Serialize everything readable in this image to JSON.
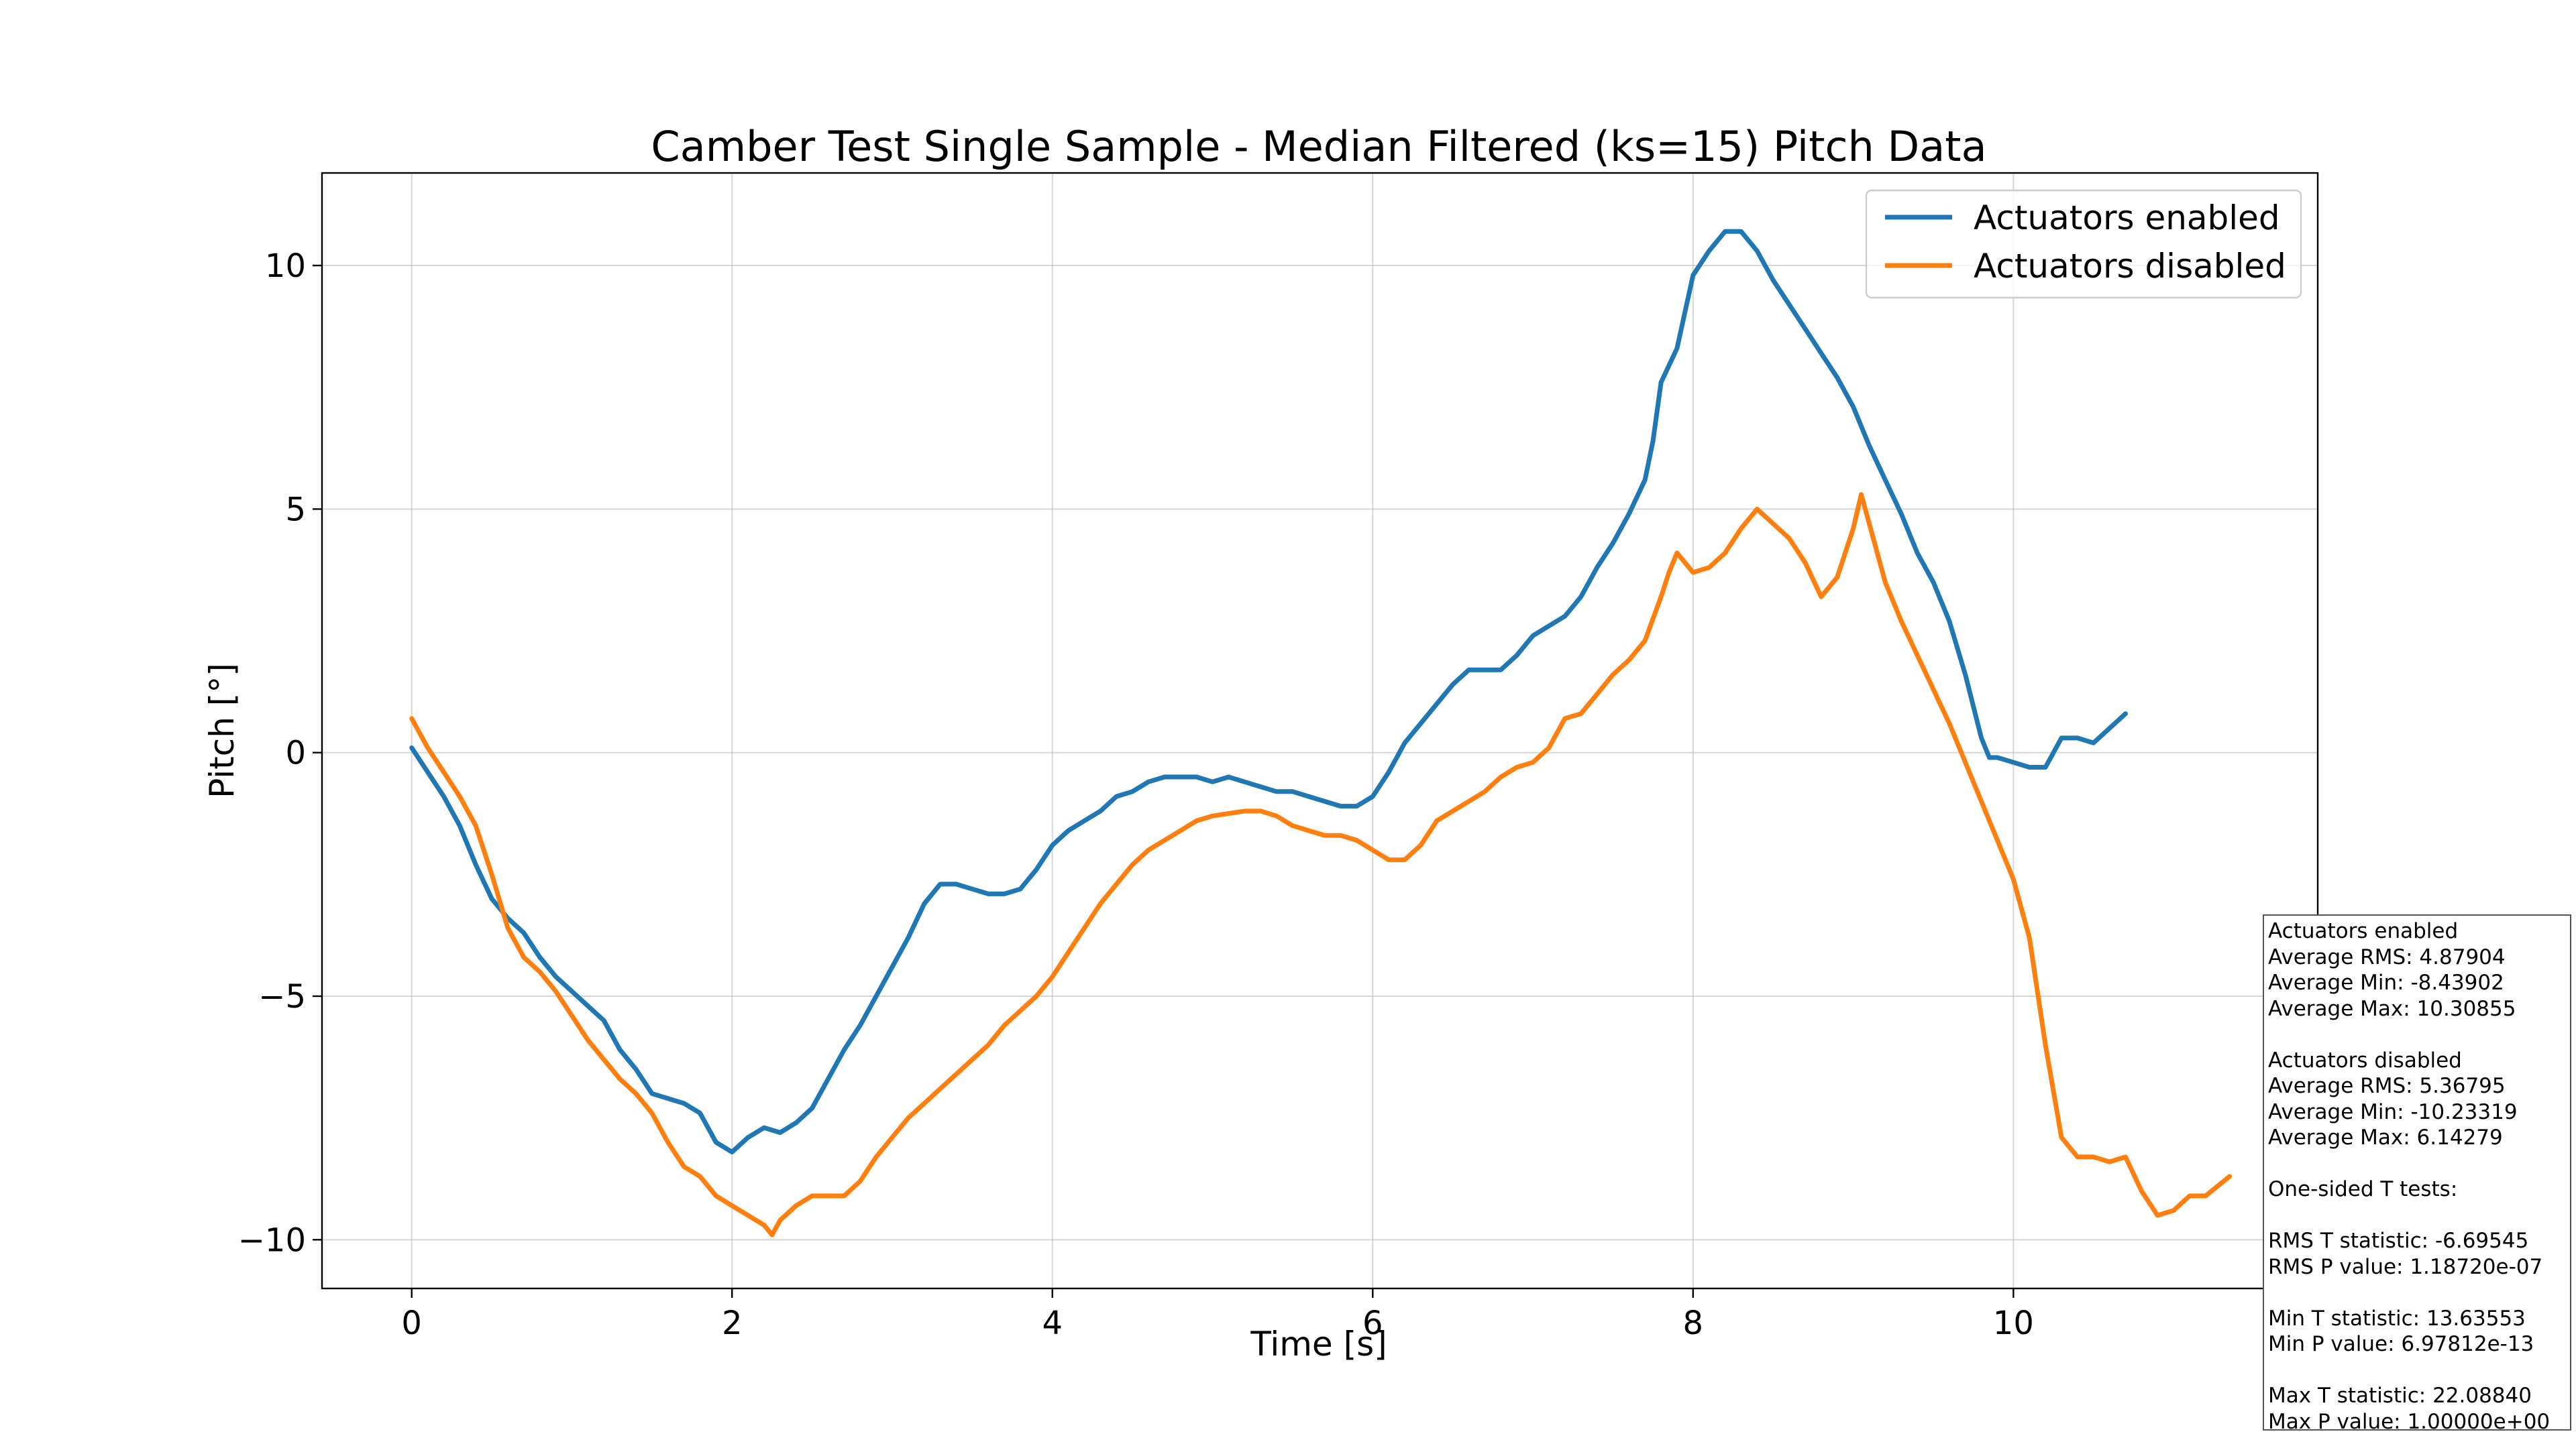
{
  "chart_data": {
    "type": "line",
    "title": "Camber Test Single Sample - Median Filtered (ks=15) Pitch Data",
    "xlabel": "Time [s]",
    "ylabel": "Pitch [°]",
    "xlim": [
      -0.56,
      11.9
    ],
    "ylim": [
      -11,
      11.9
    ],
    "xticks": [
      0,
      2,
      4,
      6,
      8,
      10
    ],
    "yticks": [
      -10,
      -5,
      0,
      5,
      10
    ],
    "xtick_labels": [
      "0",
      "2",
      "4",
      "6",
      "8",
      "10"
    ],
    "ytick_labels": [
      "−10",
      "−5",
      "0",
      "5",
      "10"
    ],
    "grid": true,
    "legend_position": "top-right",
    "series": [
      {
        "name": "Actuators enabled",
        "color": "#1f77b4",
        "points": [
          [
            0,
            0.1
          ],
          [
            0.1,
            -0.4
          ],
          [
            0.2,
            -0.9
          ],
          [
            0.3,
            -1.5
          ],
          [
            0.4,
            -2.3
          ],
          [
            0.5,
            -3.0
          ],
          [
            0.6,
            -3.4
          ],
          [
            0.7,
            -3.7
          ],
          [
            0.8,
            -4.2
          ],
          [
            0.9,
            -4.6
          ],
          [
            1.0,
            -4.9
          ],
          [
            1.1,
            -5.2
          ],
          [
            1.2,
            -5.5
          ],
          [
            1.3,
            -6.1
          ],
          [
            1.4,
            -6.5
          ],
          [
            1.5,
            -7.0
          ],
          [
            1.6,
            -7.1
          ],
          [
            1.7,
            -7.2
          ],
          [
            1.8,
            -7.4
          ],
          [
            1.9,
            -8.0
          ],
          [
            2.0,
            -8.2
          ],
          [
            2.1,
            -7.9
          ],
          [
            2.2,
            -7.7
          ],
          [
            2.3,
            -7.8
          ],
          [
            2.4,
            -7.6
          ],
          [
            2.5,
            -7.3
          ],
          [
            2.6,
            -6.7
          ],
          [
            2.7,
            -6.1
          ],
          [
            2.8,
            -5.6
          ],
          [
            2.9,
            -5.0
          ],
          [
            3.0,
            -4.4
          ],
          [
            3.1,
            -3.8
          ],
          [
            3.2,
            -3.1
          ],
          [
            3.3,
            -2.7
          ],
          [
            3.4,
            -2.7
          ],
          [
            3.5,
            -2.8
          ],
          [
            3.6,
            -2.9
          ],
          [
            3.7,
            -2.9
          ],
          [
            3.8,
            -2.8
          ],
          [
            3.9,
            -2.4
          ],
          [
            4.0,
            -1.9
          ],
          [
            4.1,
            -1.6
          ],
          [
            4.2,
            -1.4
          ],
          [
            4.3,
            -1.2
          ],
          [
            4.4,
            -0.9
          ],
          [
            4.5,
            -0.8
          ],
          [
            4.6,
            -0.6
          ],
          [
            4.7,
            -0.5
          ],
          [
            4.8,
            -0.5
          ],
          [
            4.9,
            -0.5
          ],
          [
            5.0,
            -0.6
          ],
          [
            5.1,
            -0.5
          ],
          [
            5.2,
            -0.6
          ],
          [
            5.3,
            -0.7
          ],
          [
            5.4,
            -0.8
          ],
          [
            5.5,
            -0.8
          ],
          [
            5.6,
            -0.9
          ],
          [
            5.7,
            -1.0
          ],
          [
            5.8,
            -1.1
          ],
          [
            5.9,
            -1.1
          ],
          [
            6.0,
            -0.9
          ],
          [
            6.1,
            -0.4
          ],
          [
            6.2,
            0.2
          ],
          [
            6.3,
            0.6
          ],
          [
            6.4,
            1.0
          ],
          [
            6.5,
            1.4
          ],
          [
            6.6,
            1.7
          ],
          [
            6.7,
            1.7
          ],
          [
            6.8,
            1.7
          ],
          [
            6.9,
            2.0
          ],
          [
            7.0,
            2.4
          ],
          [
            7.1,
            2.6
          ],
          [
            7.2,
            2.8
          ],
          [
            7.3,
            3.2
          ],
          [
            7.4,
            3.8
          ],
          [
            7.5,
            4.3
          ],
          [
            7.6,
            4.9
          ],
          [
            7.7,
            5.6
          ],
          [
            7.75,
            6.4
          ],
          [
            7.8,
            7.6
          ],
          [
            7.9,
            8.3
          ],
          [
            8.0,
            9.8
          ],
          [
            8.1,
            10.3
          ],
          [
            8.2,
            10.7
          ],
          [
            8.3,
            10.7
          ],
          [
            8.4,
            10.3
          ],
          [
            8.5,
            9.7
          ],
          [
            8.6,
            9.2
          ],
          [
            8.7,
            8.7
          ],
          [
            8.8,
            8.2
          ],
          [
            8.9,
            7.7
          ],
          [
            9.0,
            7.1
          ],
          [
            9.1,
            6.3
          ],
          [
            9.2,
            5.6
          ],
          [
            9.3,
            4.9
          ],
          [
            9.4,
            4.1
          ],
          [
            9.5,
            3.5
          ],
          [
            9.6,
            2.7
          ],
          [
            9.7,
            1.6
          ],
          [
            9.8,
            0.3
          ],
          [
            9.85,
            -0.1
          ],
          [
            9.9,
            -0.1
          ],
          [
            10.0,
            -0.2
          ],
          [
            10.1,
            -0.3
          ],
          [
            10.2,
            -0.3
          ],
          [
            10.3,
            0.3
          ],
          [
            10.4,
            0.3
          ],
          [
            10.5,
            0.2
          ],
          [
            10.6,
            0.5
          ],
          [
            10.7,
            0.8
          ]
        ]
      },
      {
        "name": "Actuators disabled",
        "color": "#ff7f0e",
        "points": [
          [
            0,
            0.7
          ],
          [
            0.1,
            0.1
          ],
          [
            0.2,
            -0.4
          ],
          [
            0.3,
            -0.9
          ],
          [
            0.4,
            -1.5
          ],
          [
            0.5,
            -2.5
          ],
          [
            0.6,
            -3.6
          ],
          [
            0.7,
            -4.2
          ],
          [
            0.8,
            -4.5
          ],
          [
            0.9,
            -4.9
          ],
          [
            1.0,
            -5.4
          ],
          [
            1.1,
            -5.9
          ],
          [
            1.2,
            -6.3
          ],
          [
            1.3,
            -6.7
          ],
          [
            1.4,
            -7.0
          ],
          [
            1.5,
            -7.4
          ],
          [
            1.6,
            -8.0
          ],
          [
            1.7,
            -8.5
          ],
          [
            1.8,
            -8.7
          ],
          [
            1.9,
            -9.1
          ],
          [
            2.0,
            -9.3
          ],
          [
            2.1,
            -9.5
          ],
          [
            2.2,
            -9.7
          ],
          [
            2.25,
            -9.9
          ],
          [
            2.3,
            -9.6
          ],
          [
            2.4,
            -9.3
          ],
          [
            2.5,
            -9.1
          ],
          [
            2.6,
            -9.1
          ],
          [
            2.7,
            -9.1
          ],
          [
            2.8,
            -8.8
          ],
          [
            2.9,
            -8.3
          ],
          [
            3.0,
            -7.9
          ],
          [
            3.1,
            -7.5
          ],
          [
            3.2,
            -7.2
          ],
          [
            3.3,
            -6.9
          ],
          [
            3.4,
            -6.6
          ],
          [
            3.5,
            -6.3
          ],
          [
            3.6,
            -6.0
          ],
          [
            3.7,
            -5.6
          ],
          [
            3.8,
            -5.3
          ],
          [
            3.9,
            -5.0
          ],
          [
            4.0,
            -4.6
          ],
          [
            4.1,
            -4.1
          ],
          [
            4.2,
            -3.6
          ],
          [
            4.3,
            -3.1
          ],
          [
            4.4,
            -2.7
          ],
          [
            4.5,
            -2.3
          ],
          [
            4.6,
            -2.0
          ],
          [
            4.7,
            -1.8
          ],
          [
            4.8,
            -1.6
          ],
          [
            4.9,
            -1.4
          ],
          [
            5.0,
            -1.3
          ],
          [
            5.1,
            -1.25
          ],
          [
            5.2,
            -1.2
          ],
          [
            5.3,
            -1.2
          ],
          [
            5.4,
            -1.3
          ],
          [
            5.5,
            -1.5
          ],
          [
            5.6,
            -1.6
          ],
          [
            5.7,
            -1.7
          ],
          [
            5.8,
            -1.7
          ],
          [
            5.9,
            -1.8
          ],
          [
            6.0,
            -2.0
          ],
          [
            6.1,
            -2.2
          ],
          [
            6.2,
            -2.2
          ],
          [
            6.3,
            -1.9
          ],
          [
            6.4,
            -1.4
          ],
          [
            6.5,
            -1.2
          ],
          [
            6.6,
            -1.0
          ],
          [
            6.7,
            -0.8
          ],
          [
            6.8,
            -0.5
          ],
          [
            6.9,
            -0.3
          ],
          [
            7.0,
            -0.2
          ],
          [
            7.1,
            0.1
          ],
          [
            7.2,
            0.7
          ],
          [
            7.3,
            0.8
          ],
          [
            7.4,
            1.2
          ],
          [
            7.5,
            1.6
          ],
          [
            7.6,
            1.9
          ],
          [
            7.7,
            2.3
          ],
          [
            7.8,
            3.2
          ],
          [
            7.85,
            3.7
          ],
          [
            7.9,
            4.1
          ],
          [
            8.0,
            3.7
          ],
          [
            8.1,
            3.8
          ],
          [
            8.2,
            4.1
          ],
          [
            8.3,
            4.6
          ],
          [
            8.4,
            5.0
          ],
          [
            8.5,
            4.7
          ],
          [
            8.6,
            4.4
          ],
          [
            8.7,
            3.9
          ],
          [
            8.8,
            3.2
          ],
          [
            8.9,
            3.6
          ],
          [
            9.0,
            4.6
          ],
          [
            9.05,
            5.3
          ],
          [
            9.1,
            4.7
          ],
          [
            9.2,
            3.5
          ],
          [
            9.3,
            2.7
          ],
          [
            9.4,
            2.0
          ],
          [
            9.5,
            1.3
          ],
          [
            9.6,
            0.6
          ],
          [
            9.7,
            -0.2
          ],
          [
            9.8,
            -1.0
          ],
          [
            9.9,
            -1.8
          ],
          [
            10.0,
            -2.6
          ],
          [
            10.1,
            -3.8
          ],
          [
            10.2,
            -6.0
          ],
          [
            10.3,
            -7.9
          ],
          [
            10.4,
            -8.3
          ],
          [
            10.5,
            -8.3
          ],
          [
            10.6,
            -8.4
          ],
          [
            10.7,
            -8.3
          ],
          [
            10.8,
            -9.0
          ],
          [
            10.9,
            -9.5
          ],
          [
            11.0,
            -9.4
          ],
          [
            11.1,
            -9.1
          ],
          [
            11.2,
            -9.1
          ],
          [
            11.35,
            -8.7
          ]
        ]
      }
    ]
  },
  "stats_box": {
    "lines": [
      "Actuators enabled",
      "Average RMS: 4.87904",
      "Average Min: -8.43902",
      "Average Max: 10.30855",
      "",
      "Actuators disabled",
      "Average RMS: 5.36795",
      "Average Min: -10.23319",
      "Average Max: 6.14279",
      "",
      "One-sided T tests:",
      "",
      "RMS T statistic: -6.69545",
      "RMS P value: 1.18720e-07",
      "",
      "Min T statistic: 13.63553",
      "Min P value: 6.97812e-13",
      "",
      "Max T statistic: 22.08840",
      "Max P value: 1.00000e+00"
    ]
  }
}
